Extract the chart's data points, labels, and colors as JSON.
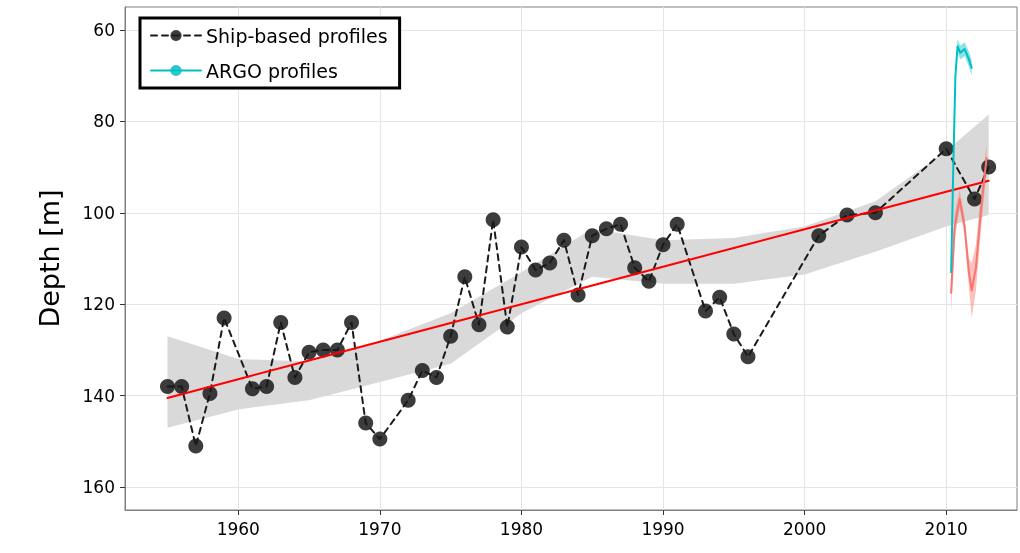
{
  "chart_data": {
    "type": "line",
    "ylabel": "Depth [m]",
    "xlim": [
      1952,
      2015
    ],
    "xticks": [
      1960,
      1970,
      1980,
      1990,
      2000,
      2010
    ],
    "ylim": [
      165,
      55
    ],
    "yticks": [
      60,
      80,
      100,
      120,
      140,
      160
    ],
    "grid": true,
    "legend": "top left",
    "series": [
      {
        "name": "Ship-based profiles",
        "color": "#1a1a1a",
        "marker": "circle",
        "line_style": "dashed",
        "x": [
          1955,
          1956,
          1957,
          1958,
          1959,
          1961,
          1962,
          1963,
          1964,
          1965,
          1966,
          1967,
          1968,
          1969,
          1970,
          1972,
          1973,
          1974,
          1975,
          1976,
          1977,
          1978,
          1979,
          1980,
          1981,
          1982,
          1983,
          1984,
          1985,
          1986,
          1987,
          1988,
          1989,
          1990,
          1991,
          1993,
          1994,
          1995,
          1996,
          2001,
          2003,
          2005,
          2010,
          2012,
          2013
        ],
        "values": [
          138,
          138,
          151,
          139.5,
          123,
          138.5,
          138,
          124,
          136,
          130.5,
          130,
          130,
          124,
          146,
          149.5,
          141,
          134.5,
          136,
          127,
          114,
          124.5,
          101.5,
          125,
          107.5,
          112.5,
          111,
          106,
          118,
          105,
          103.5,
          102.5,
          112,
          115,
          107,
          102.5,
          121.5,
          118.5,
          126.5,
          131.5,
          105,
          100.5,
          100,
          86,
          97,
          90
        ]
      },
      {
        "color": "#ff0000",
        "marker": "none",
        "line_style": "solid",
        "x": [
          1955,
          1960,
          1965,
          1970,
          1975,
          1980,
          1985,
          1990,
          1995,
          2000,
          2005,
          2010,
          2013
        ],
        "values": [
          140.5,
          136.4,
          132.3,
          128.2,
          124.1,
          120,
          115.9,
          111.8,
          107.7,
          103.6,
          99.5,
          95.4,
          93
        ]
      },
      {
        "color": "#d9d9d9",
        "marker": "none",
        "x": [
          1955,
          1960,
          1965,
          1970,
          1975,
          1980,
          1985,
          1990,
          1995,
          2000,
          2005,
          2010,
          2013
        ],
        "values": [
          null,
          null,
          null,
          null,
          null,
          null,
          null,
          null,
          null,
          null,
          null,
          null,
          null
        ],
        "lower": [
          147,
          143,
          141,
          137,
          133,
          122,
          114,
          115.5,
          115.5,
          113.5,
          108.5,
          103,
          100.5
        ],
        "upper": [
          127,
          132,
          132.5,
          128,
          122,
          113,
          103.5,
          106,
          105.5,
          103,
          97.5,
          86.5,
          78.5
        ]
      },
      {
        "color": "#f8766d",
        "marker": "none",
        "line_style": "solid",
        "x": [
          2010.35,
          2010.6,
          2010.95,
          2011.3,
          2011.6,
          2011.8,
          2012.1,
          2012.5,
          2012.85
        ],
        "values": [
          117.5,
          103,
          97,
          103,
          113,
          117,
          112,
          98,
          88
        ],
        "lower": [
          122,
          106,
          99,
          105,
          116,
          123,
          117,
          102,
          91
        ],
        "upper": [
          113,
          100,
          95,
          101,
          110,
          111,
          107,
          94,
          85
        ]
      },
      {
        "name": "ARGO profiles",
        "color": "#00bfc4",
        "marker": "none",
        "line_style": "solid",
        "x": [
          2010.35,
          2010.5,
          2010.65,
          2010.8,
          2011.0,
          2011.3,
          2011.6,
          2011.8
        ],
        "values": [
          113,
          90,
          70,
          63.6,
          65,
          64.2,
          66.4,
          68.3
        ],
        "lower": [
          114,
          91,
          71.5,
          65,
          66.5,
          65.7,
          68,
          70
        ],
        "upper": [
          112,
          89,
          68.5,
          62,
          63.5,
          62.7,
          64.8,
          66.6
        ]
      }
    ]
  }
}
